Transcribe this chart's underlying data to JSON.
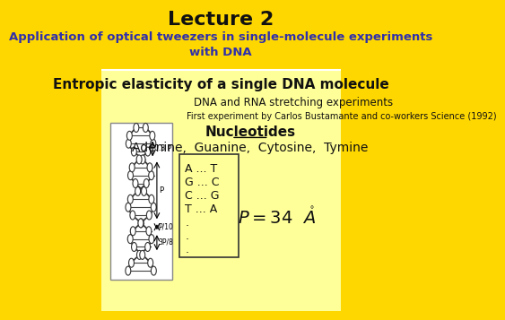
{
  "background_color": "#FFD700",
  "header_bg": "#FFD700",
  "title1": "Lecture 2",
  "title2": "Application of optical tweezers in single-molecule experiments\nwith DNA",
  "subtitle": "Entropic elasticity of a single DNA molecule",
  "line1": "DNA and RNA stretching experiments",
  "line2": "First experiment by Carlos Bustamante and co-workers Science (1992)",
  "nucleotides_label": "Nucleotides",
  "nucleotides": "Adenine,  Guanine,  Cytosine,  Tymine",
  "pairs": [
    "A ... T",
    "G ... C",
    "C ... G",
    "T ... A",
    ".",
    ".",
    "."
  ],
  "formula": "$P = 34 \\ \\ \\mathring{A}$",
  "title_color": "#000000",
  "subtitle_color": "#000033",
  "header_title_color": "#000000",
  "header_subtitle_color": "#4040C0"
}
